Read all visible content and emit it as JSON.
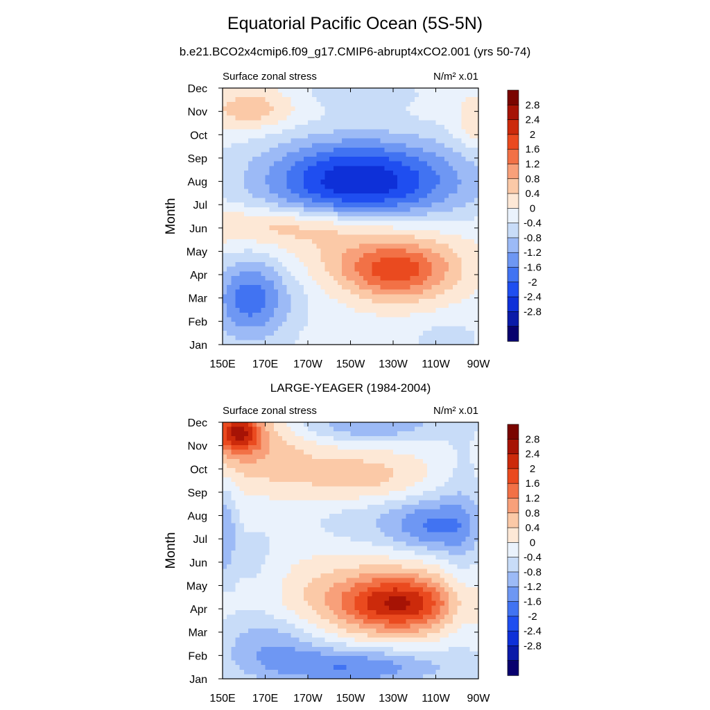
{
  "figure": {
    "title": "Equatorial Pacific Ocean (5S-5N)",
    "subtitle": "b.e21.BCO2x4cmip6.f09_g17.CMIP6-abrupt4xCO2.001 (yrs 50-74)"
  },
  "chart_data": [
    {
      "type": "heatmap",
      "title": "",
      "left_label": "Surface zonal stress",
      "units_label": "N/m² x.01",
      "xlabel": "",
      "ylabel": "Month",
      "x_ticks": [
        "150E",
        "170E",
        "170W",
        "150W",
        "130W",
        "110W",
        "90W"
      ],
      "x_tick_lon": [
        150,
        170,
        190,
        210,
        230,
        250,
        270
      ],
      "xlim": [
        150,
        270
      ],
      "y_ticks": [
        "Jan",
        "Feb",
        "Mar",
        "Apr",
        "May",
        "Jun",
        "Jul",
        "Aug",
        "Sep",
        "Oct",
        "Nov",
        "Dec"
      ],
      "ylim": [
        1,
        12
      ],
      "levels": [
        -2.8,
        -2.4,
        -2,
        -1.6,
        -1.2,
        -0.8,
        -0.4,
        0,
        0.4,
        0.8,
        1.2,
        1.6,
        2,
        2.4,
        2.8
      ],
      "features": [
        {
          "lon": 212,
          "month": 8.0,
          "value": -1.8,
          "sx": 30,
          "sy": 1.3
        },
        {
          "lon": 225,
          "month": 8.1,
          "value": -0.8,
          "sx": 40,
          "sy": 1.2
        },
        {
          "lon": 162,
          "month": 3.0,
          "value": -1.5,
          "sx": 12,
          "sy": 1.3
        },
        {
          "lon": 178,
          "month": 3.5,
          "value": -0.3,
          "sx": 14,
          "sy": 1.6
        },
        {
          "lon": 232,
          "month": 4.1,
          "value": 1.7,
          "sx": 18,
          "sy": 0.9
        },
        {
          "lon": 185,
          "month": 6.1,
          "value": 1.0,
          "sx": 35,
          "sy": 0.6
        },
        {
          "lon": 215,
          "month": 4.8,
          "value": 0.6,
          "sx": 38,
          "sy": 0.9
        },
        {
          "lon": 163,
          "month": 11.1,
          "value": 0.9,
          "sx": 14,
          "sy": 0.6
        },
        {
          "lon": 268,
          "month": 10.5,
          "value": 0.6,
          "sx": 6,
          "sy": 0.8
        },
        {
          "lon": 255,
          "month": 1.2,
          "value": -0.5,
          "sx": 10,
          "sy": 0.5
        },
        {
          "lon": 215,
          "month": 11.8,
          "value": -0.5,
          "sx": 18,
          "sy": 0.5
        }
      ]
    },
    {
      "type": "heatmap",
      "title": "LARGE-YEAGER (1984-2004)",
      "left_label": "Surface zonal stress",
      "units_label": "N/m² x.01",
      "xlabel": "",
      "ylabel": "Month",
      "x_ticks": [
        "150E",
        "170E",
        "170W",
        "150W",
        "130W",
        "110W",
        "90W"
      ],
      "x_tick_lon": [
        150,
        170,
        190,
        210,
        230,
        250,
        270
      ],
      "xlim": [
        150,
        270
      ],
      "y_ticks": [
        "Jan",
        "Feb",
        "Mar",
        "Apr",
        "May",
        "Jun",
        "Jul",
        "Aug",
        "Sep",
        "Oct",
        "Nov",
        "Dec"
      ],
      "ylim": [
        1,
        12
      ],
      "levels": [
        -2.8,
        -2.4,
        -2,
        -1.6,
        -1.2,
        -0.8,
        -0.4,
        0,
        0.4,
        0.8,
        1.2,
        1.6,
        2,
        2.4,
        2.8
      ],
      "features": [
        {
          "lon": 157,
          "month": 11.6,
          "value": 2.2,
          "sx": 8,
          "sy": 0.6
        },
        {
          "lon": 165,
          "month": 10.8,
          "value": 0.9,
          "sx": 20,
          "sy": 1.2
        },
        {
          "lon": 215,
          "month": 9.6,
          "value": 0.9,
          "sx": 22,
          "sy": 0.8
        },
        {
          "lon": 233,
          "month": 4.2,
          "value": 1.9,
          "sx": 18,
          "sy": 0.8
        },
        {
          "lon": 220,
          "month": 4.5,
          "value": 0.9,
          "sx": 35,
          "sy": 1.3
        },
        {
          "lon": 212,
          "month": 1.5,
          "value": -1.4,
          "sx": 30,
          "sy": 0.6
        },
        {
          "lon": 173,
          "month": 2.5,
          "value": -0.9,
          "sx": 18,
          "sy": 0.9
        },
        {
          "lon": 249,
          "month": 7.5,
          "value": -1.0,
          "sx": 13,
          "sy": 0.8
        },
        {
          "lon": 230,
          "month": 7.8,
          "value": -0.6,
          "sx": 28,
          "sy": 1.0
        },
        {
          "lon": 218,
          "month": 11.9,
          "value": -1.0,
          "sx": 25,
          "sy": 0.5
        },
        {
          "lon": 151,
          "month": 7.3,
          "value": -0.9,
          "sx": 4,
          "sy": 1.5
        },
        {
          "lon": 262,
          "month": 6.5,
          "value": -0.5,
          "sx": 7,
          "sy": 3.5
        },
        {
          "lon": 166,
          "month": 5.5,
          "value": -0.4,
          "sx": 10,
          "sy": 1.5
        }
      ]
    }
  ],
  "colorbar": {
    "labels": [
      "2.8",
      "2.4",
      "2",
      "1.6",
      "1.2",
      "0.8",
      "0.4",
      "0",
      "-0.4",
      "-0.8",
      "-1.2",
      "-1.6",
      "-2",
      "-2.4",
      "-2.8"
    ],
    "colors": [
      "#08006e",
      "#0a1aa8",
      "#0e30d8",
      "#1f4ef0",
      "#4173f2",
      "#6e97f3",
      "#9cbaf6",
      "#c8dcf8",
      "#eaf2fc",
      "#fde8d6",
      "#fbc9a7",
      "#f8a07a",
      "#f27146",
      "#ea4a1f",
      "#cc2a0b",
      "#a61305",
      "#7a0500"
    ]
  }
}
